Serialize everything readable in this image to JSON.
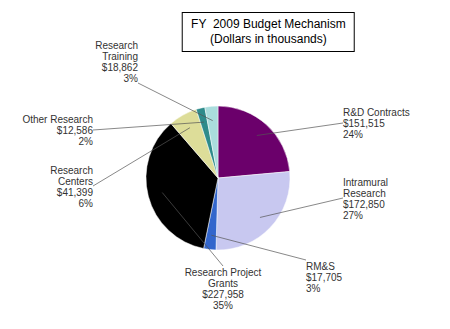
{
  "chart_data": {
    "type": "pie",
    "title": "FY  2009 Budget Mechanism\n(Dollars in thousands)",
    "categories": [
      "R&D Contracts",
      "Intramural\nResearch",
      "RM&S",
      "Research Project\nGrants",
      "Research\nCenters",
      "Other Research",
      "Research\nTraining"
    ],
    "values": [
      151515,
      172850,
      17705,
      227958,
      41399,
      12586,
      18862
    ],
    "value_labels": [
      "$151,515\n24%",
      "$172,850\n27%",
      "$17,705\n3%",
      "$227,958\n35%",
      "$41,399\n6%",
      "$12,586\n2%",
      "$18,862\n3%"
    ],
    "colors": [
      "#6B006B",
      "#C8C8F0",
      "#3366CC",
      "#000000",
      "#DDDD99",
      "#2E8B8B",
      "#AADDDD"
    ],
    "data_labels": true
  }
}
